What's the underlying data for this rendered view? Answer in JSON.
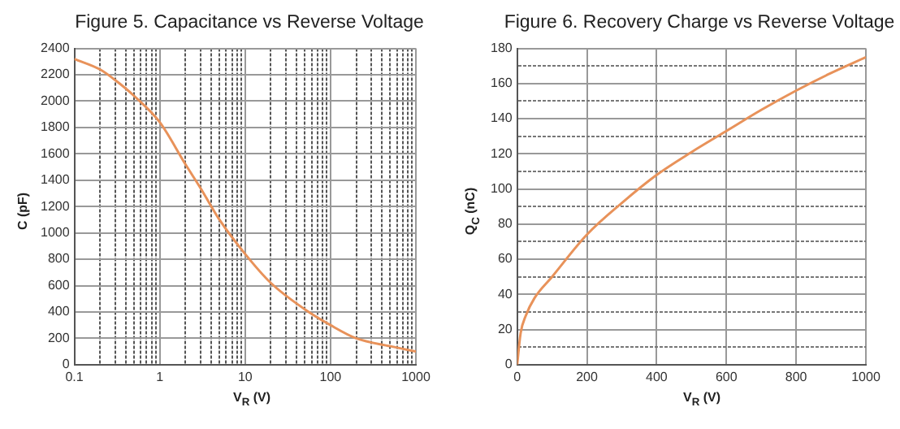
{
  "chart_data": [
    {
      "type": "line",
      "title": "Figure 5. Capacitance vs Reverse Voltage",
      "xlabel": "V$_{R}$ (V)",
      "ylabel": "C (pF)",
      "log": "x",
      "grid": true,
      "legend": false,
      "marker": "none",
      "x": [
        0.1,
        0.2,
        0.3,
        0.5,
        1,
        2,
        3,
        5,
        10,
        20,
        50,
        100,
        200,
        500,
        1000
      ],
      "series": [
        {
          "color": "#e8925a",
          "values": [
            2320,
            2240,
            2160,
            2040,
            1840,
            1520,
            1340,
            1100,
            840,
            620,
            420,
            300,
            200,
            140,
            100
          ]
        }
      ],
      "xlim": [
        0.1,
        1000
      ],
      "ylim": [
        0,
        2400
      ],
      "xticks": [
        0.1,
        {
          "value": 0.2,
          "label": null
        },
        {
          "value": 0.3,
          "label": null
        },
        {
          "value": 0.4,
          "label": null
        },
        {
          "value": 0.5,
          "label": null
        },
        {
          "value": 0.6,
          "label": null
        },
        {
          "value": 0.7,
          "label": null
        },
        {
          "value": 0.8,
          "label": null
        },
        {
          "value": 0.9,
          "label": null
        },
        1,
        {
          "value": 2,
          "label": null
        },
        {
          "value": 3,
          "label": null
        },
        {
          "value": 4,
          "label": null
        },
        {
          "value": 5,
          "label": null
        },
        {
          "value": 6,
          "label": null
        },
        {
          "value": 7,
          "label": null
        },
        {
          "value": 8,
          "label": null
        },
        {
          "value": 9,
          "label": null
        },
        10,
        {
          "value": 20,
          "label": null
        },
        {
          "value": 30,
          "label": null
        },
        {
          "value": 40,
          "label": null
        },
        {
          "value": 50,
          "label": null
        },
        {
          "value": 60,
          "label": null
        },
        {
          "value": 70,
          "label": null
        },
        {
          "value": 80,
          "label": null
        },
        {
          "value": 90,
          "label": null
        },
        100,
        {
          "value": 200,
          "label": null
        },
        {
          "value": 300,
          "label": null
        },
        {
          "value": 400,
          "label": null
        },
        {
          "value": 500,
          "label": null
        },
        {
          "value": 600,
          "label": null
        },
        {
          "value": 700,
          "label": null
        },
        {
          "value": 800,
          "label": null
        },
        {
          "value": 900,
          "label": null
        },
        1000
      ],
      "yticks": [
        0,
        200,
        400,
        600,
        800,
        1000,
        1200,
        1400,
        1600,
        1800,
        2000,
        2200,
        2400
      ]
    },
    {
      "type": "line",
      "title": "Figure 6. Recovery Charge vs Reverse Voltage",
      "xlabel": "V$_{R}$ (V)",
      "ylabel": "Q$_{C}$ (nC)",
      "grid": true,
      "legend": false,
      "marker": "none",
      "x": [
        0,
        10,
        25,
        50,
        100,
        200,
        300,
        400,
        500,
        600,
        700,
        800,
        900,
        1000
      ],
      "series": [
        {
          "color": "#e8925a",
          "values": [
            0,
            18,
            28,
            38,
            50,
            74,
            92,
            108,
            121,
            133,
            145,
            156,
            166,
            175
          ]
        }
      ],
      "xlim": [
        0,
        1000
      ],
      "ylim": [
        0,
        180
      ],
      "xticks": [
        0,
        200,
        400,
        600,
        800,
        1000
      ],
      "yticks": [
        0,
        {
          "value": 10,
          "label": null
        },
        20,
        {
          "value": 30,
          "label": null
        },
        40,
        {
          "value": 50,
          "label": null
        },
        60,
        {
          "value": 70,
          "label": null
        },
        80,
        {
          "value": 90,
          "label": null
        },
        100,
        {
          "value": 110,
          "label": null
        },
        120,
        {
          "value": 130,
          "label": null
        },
        140,
        {
          "value": 150,
          "label": null
        },
        160,
        {
          "value": 170,
          "label": null
        },
        180
      ]
    }
  ]
}
